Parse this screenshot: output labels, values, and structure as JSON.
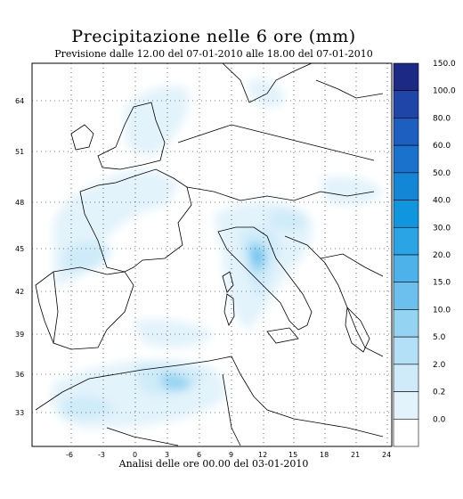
{
  "title": "Precipitazione nelle 6 ore (mm)",
  "subtitle": "Previsione dalle 12.00 del 07-01-2010 alle 18.00 del 07-01-2010",
  "footer": "Analisi delle ore 00.00 del 03-01-2010",
  "lat_ticks": [
    "64",
    "51",
    "48",
    "45",
    "42",
    "39",
    "36",
    "33"
  ],
  "lon_ticks": [
    "-6",
    "-3",
    "0",
    "3",
    "6",
    "9",
    "12",
    "15",
    "18",
    "21",
    "24"
  ],
  "colorbar": {
    "labels": [
      "150.0",
      "100.0",
      "80.0",
      "60.0",
      "50.0",
      "40.0",
      "30.0",
      "20.0",
      "15.0",
      "10.0",
      "5.0",
      "2.0",
      "0.2",
      "0.0"
    ],
    "colors": [
      "#1c2a86",
      "#1f45a8",
      "#1c5fc0",
      "#1a72cc",
      "#1486d6",
      "#1096df",
      "#2ba4e6",
      "#4db2ea",
      "#6cc0ee",
      "#94d4f2",
      "#b3e0f6",
      "#cfebf9",
      "#e3f3fb",
      "#ffffff"
    ]
  }
}
